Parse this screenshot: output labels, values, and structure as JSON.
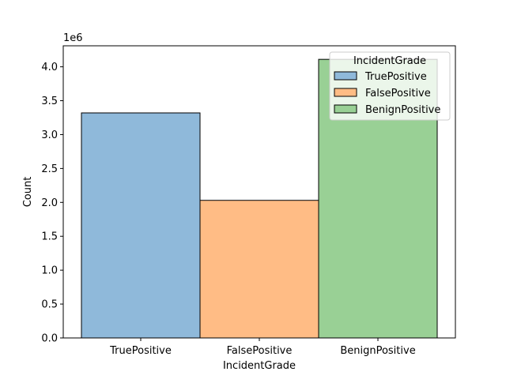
{
  "chart_data": {
    "type": "bar",
    "categories": [
      "TruePositive",
      "FalsePositive",
      "BenignPositive"
    ],
    "values": [
      3320000,
      2030000,
      4110000
    ],
    "xlabel": "IncidentGrade",
    "ylabel": "Count",
    "ylim": [
      0,
      4310000
    ],
    "y_ticks": [
      0,
      500000,
      1000000,
      1500000,
      2000000,
      2500000,
      3000000,
      3500000,
      4000000
    ],
    "y_tick_labels": [
      "0.0",
      "0.5",
      "1.0",
      "1.5",
      "2.0",
      "2.5",
      "3.0",
      "3.5",
      "4.0"
    ],
    "y_offset_text": "1e6",
    "colors": [
      "#8fb9da",
      "#ffbc85",
      "#99d095"
    ],
    "grid": false,
    "legend": {
      "title": "IncidentGrade",
      "placement": "top-right",
      "entries": [
        "TruePositive",
        "FalsePositive",
        "BenignPositive"
      ]
    }
  }
}
